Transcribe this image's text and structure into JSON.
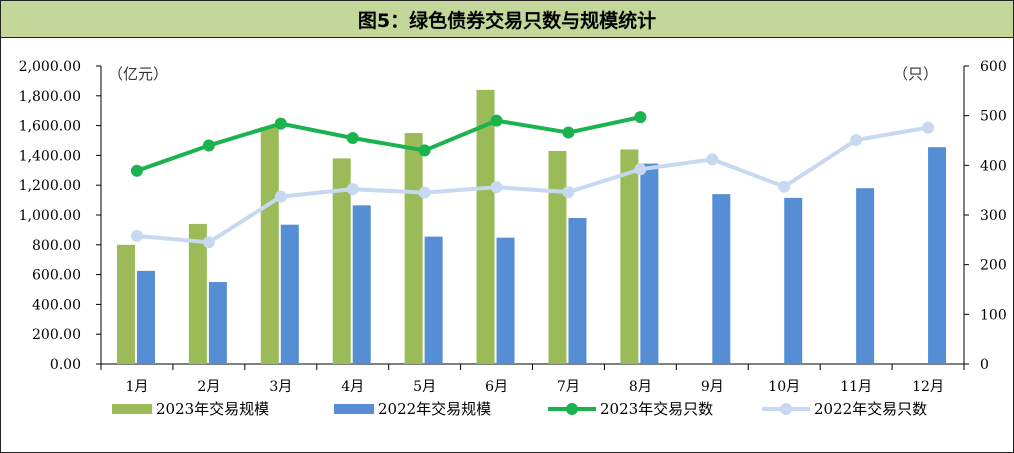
{
  "title": "图5：绿色债券交易只数与规模统计",
  "chart_data": {
    "type": "bar+line",
    "title": "图5：绿色债券交易只数与规模统计",
    "categories": [
      "1月",
      "2月",
      "3月",
      "4月",
      "5月",
      "6月",
      "7月",
      "8月",
      "9月",
      "10月",
      "11月",
      "12月"
    ],
    "left_axis": {
      "unit": "（亿元）",
      "ylim": [
        0,
        2000
      ],
      "ticks": [
        "0.00",
        "200.00",
        "400.00",
        "600.00",
        "800.00",
        "1,000.00",
        "1,200.00",
        "1,400.00",
        "1,600.00",
        "1,800.00",
        "2,000.00"
      ]
    },
    "right_axis": {
      "unit": "（只）",
      "ylim": [
        0,
        600
      ],
      "ticks": [
        "0",
        "100",
        "200",
        "300",
        "400",
        "500",
        "600"
      ]
    },
    "series": [
      {
        "name": "2023年交易规模",
        "type": "bar",
        "axis": "left",
        "color": "#9bbb59",
        "values": [
          800,
          940,
          1590,
          1380,
          1550,
          1840,
          1430,
          1440,
          null,
          null,
          null,
          null
        ]
      },
      {
        "name": "2022年交易规模",
        "type": "bar",
        "axis": "left",
        "color": "#558ed5",
        "values": [
          625,
          550,
          935,
          1065,
          855,
          848,
          980,
          1345,
          1140,
          1115,
          1180,
          1455
        ]
      },
      {
        "name": "2023年交易只数",
        "type": "line",
        "axis": "right",
        "color": "#1ab34d",
        "values": [
          389,
          440,
          484,
          455,
          430,
          490,
          466,
          497,
          null,
          null,
          null,
          null
        ]
      },
      {
        "name": "2022年交易只数",
        "type": "line",
        "axis": "right",
        "color": "#c6d9f1",
        "values": [
          258,
          245,
          337,
          352,
          345,
          356,
          346,
          392,
          412,
          357,
          451,
          476
        ]
      }
    ],
    "grid": false,
    "legend_position": "bottom"
  }
}
